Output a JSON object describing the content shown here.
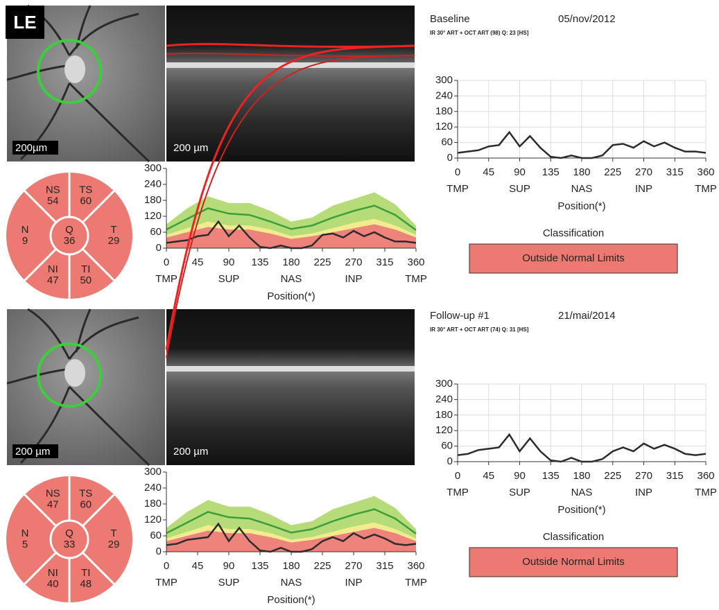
{
  "badge": "LE",
  "colors": {
    "within": "#b5dc78",
    "borderline": "#f3ec8c",
    "outside": "#ee837b",
    "mean": "#3a9f3a",
    "profile": "#2b2b2b",
    "sector": "#ec7a73"
  },
  "normative": {
    "x": [
      0,
      30,
      60,
      90,
      120,
      150,
      180,
      210,
      240,
      270,
      300,
      330,
      360
    ],
    "p95": [
      90,
      150,
      195,
      170,
      170,
      140,
      100,
      115,
      160,
      185,
      210,
      165,
      85
    ],
    "p5": [
      50,
      75,
      100,
      85,
      85,
      70,
      45,
      55,
      75,
      95,
      110,
      85,
      50
    ],
    "p1": [
      40,
      60,
      80,
      70,
      70,
      55,
      35,
      45,
      60,
      75,
      90,
      70,
      40
    ],
    "mean": [
      70,
      110,
      150,
      130,
      125,
      100,
      72,
      85,
      115,
      140,
      160,
      125,
      68
    ]
  },
  "axes": {
    "xlim": [
      0,
      360
    ],
    "ylim": [
      0,
      300
    ],
    "xticks": [
      0,
      45,
      90,
      135,
      180,
      225,
      270,
      315,
      360
    ],
    "yticks": [
      0,
      60,
      120,
      180,
      240,
      300
    ],
    "xregions": [
      {
        "value": 0,
        "label": "TMP"
      },
      {
        "value": 90,
        "label": "SUP"
      },
      {
        "value": 180,
        "label": "NAS"
      },
      {
        "value": 270,
        "label": "INP"
      },
      {
        "value": 360,
        "label": "TMP"
      }
    ],
    "xlabel": "Position(*)"
  },
  "exams": [
    {
      "label": "Baseline",
      "date": "05/nov/2012",
      "scan_info": "IR 30° ART + OCT ART (98) Q: 23 [HS]",
      "fundus_scale": "200µm",
      "oct_scale": "200 µm",
      "sectors": [
        {
          "label": "NS",
          "value": 54
        },
        {
          "label": "TS",
          "value": 60
        },
        {
          "label": "N",
          "value": 9
        },
        {
          "label": "T",
          "value": 29
        },
        {
          "label": "NI",
          "value": 47
        },
        {
          "label": "TI",
          "value": 50
        }
      ],
      "global": {
        "label": "Q",
        "value": 36
      },
      "profile": {
        "x": [
          0,
          15,
          30,
          45,
          60,
          75,
          90,
          105,
          120,
          135,
          150,
          165,
          180,
          195,
          210,
          225,
          240,
          255,
          270,
          285,
          300,
          315,
          330,
          345,
          360
        ],
        "values": [
          20,
          25,
          30,
          45,
          50,
          100,
          45,
          85,
          40,
          5,
          0,
          10,
          0,
          0,
          10,
          50,
          55,
          40,
          65,
          45,
          60,
          40,
          25,
          25,
          20
        ]
      },
      "classification_title": "Classification",
      "classification": "Outside Normal Limits"
    },
    {
      "label": "Follow-up #1",
      "date": "21/mai/2014",
      "scan_info": "IR 30° ART + OCT ART (74) Q: 31 [HS]",
      "fundus_scale": "200 µm",
      "oct_scale": "200 µm",
      "sectors": [
        {
          "label": "NS",
          "value": 47
        },
        {
          "label": "TS",
          "value": 60
        },
        {
          "label": "N",
          "value": 5
        },
        {
          "label": "T",
          "value": 29
        },
        {
          "label": "NI",
          "value": 40
        },
        {
          "label": "TI",
          "value": 48
        }
      ],
      "global": {
        "label": "Q",
        "value": 33
      },
      "profile": {
        "x": [
          0,
          15,
          30,
          45,
          60,
          75,
          90,
          105,
          120,
          135,
          150,
          165,
          180,
          195,
          210,
          225,
          240,
          255,
          270,
          285,
          300,
          315,
          330,
          345,
          360
        ],
        "values": [
          25,
          30,
          45,
          50,
          55,
          105,
          40,
          90,
          40,
          5,
          0,
          15,
          0,
          0,
          10,
          40,
          55,
          40,
          70,
          50,
          65,
          50,
          30,
          25,
          30
        ]
      },
      "classification_title": "Classification",
      "classification": "Outside Normal Limits"
    }
  ]
}
